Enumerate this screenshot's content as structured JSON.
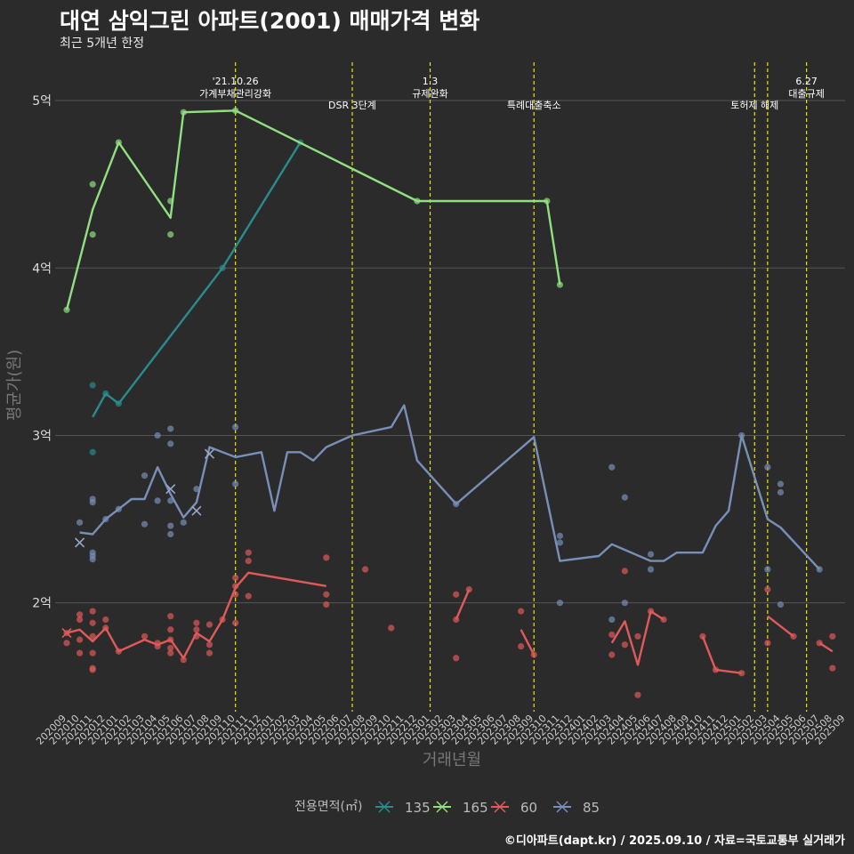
{
  "header": {
    "title": "대연 삼익그린 아파트(2001) 매매가격 변화",
    "subtitle": "최근 5개년 한정"
  },
  "caption": "©디아파트(dapt.kr) / 2025.09.10 / 자료=국토교통부 실거래가",
  "colors": {
    "background": "#2b2b2b",
    "grid": "#555555",
    "event_line": "#e8e800",
    "series": {
      "135": "#2a8c8c",
      "165": "#90e080",
      "60": "#e05a5a",
      "85": "#7890b8"
    }
  },
  "chart_data": {
    "type": "line",
    "title": "대연 삼익그린 아파트(2001) 매매가격 변화",
    "subtitle": "최근 5개년 한정",
    "xlabel": "거래년월",
    "ylabel": "평균가(원)",
    "ylim": [
      1.35,
      5.25
    ],
    "yticks": [
      {
        "value": 2,
        "label": "2억"
      },
      {
        "value": 3,
        "label": "3억"
      },
      {
        "value": 4,
        "label": "4억"
      },
      {
        "value": 5,
        "label": "5억"
      }
    ],
    "grid": true,
    "x_categories": [
      "202009",
      "202010",
      "202011",
      "202012",
      "202101",
      "202102",
      "202103",
      "202104",
      "202105",
      "202106",
      "202107",
      "202108",
      "202109",
      "202110",
      "202111",
      "202112",
      "202201",
      "202202",
      "202203",
      "202204",
      "202205",
      "202206",
      "202207",
      "202208",
      "202209",
      "202210",
      "202211",
      "202212",
      "202301",
      "202302",
      "202303",
      "202304",
      "202305",
      "202306",
      "202307",
      "202308",
      "202309",
      "202310",
      "202311",
      "202312",
      "202401",
      "202402",
      "202403",
      "202404",
      "202405",
      "202406",
      "202407",
      "202408",
      "202409",
      "202410",
      "202411",
      "202412",
      "202501",
      "202502",
      "202503",
      "202504",
      "202505",
      "202506",
      "202507",
      "202508",
      "202509"
    ],
    "events": [
      {
        "x": "202110",
        "label": [
          "'21.10.26",
          "가계부채관리강화"
        ]
      },
      {
        "x": "202207",
        "label": [
          "DSR 3단계"
        ]
      },
      {
        "x": "202301",
        "label": [
          "1.3",
          "규제완화"
        ]
      },
      {
        "x": "202309",
        "label": [
          "특례대출축소"
        ]
      },
      {
        "x": "202502",
        "label": [
          "토허제 해제"
        ]
      },
      {
        "x": "202503",
        "label": []
      },
      {
        "x": "202506",
        "label": [
          "6.27",
          "대출규제"
        ]
      }
    ],
    "legend": {
      "title": "전용면적(㎡)",
      "position": "bottom",
      "entries": [
        "135",
        "165",
        "60",
        "85"
      ]
    },
    "series": [
      {
        "name": "135",
        "line": [
          [
            "202011",
            3.11
          ],
          [
            "202012",
            3.25
          ],
          [
            "202101",
            3.19
          ],
          [
            "202109",
            4.0
          ],
          [
            "202203",
            4.75
          ]
        ],
        "points": [
          [
            "202011",
            3.3
          ],
          [
            "202011",
            2.9
          ],
          [
            "202012",
            3.25
          ],
          [
            "202101",
            3.19
          ],
          [
            "202109",
            4.0
          ],
          [
            "202203",
            4.75
          ]
        ]
      },
      {
        "name": "165",
        "line": [
          [
            "202009",
            3.75
          ],
          [
            "202011",
            4.35
          ],
          [
            "202101",
            4.75
          ],
          [
            "202105",
            4.3
          ],
          [
            "202106",
            4.93
          ],
          [
            "202110",
            4.94
          ],
          [
            "202212",
            4.4
          ],
          [
            "202310",
            4.4
          ],
          [
            "202311",
            3.9
          ]
        ],
        "points": [
          [
            "202009",
            3.75
          ],
          [
            "202011",
            4.5
          ],
          [
            "202011",
            4.2
          ],
          [
            "202101",
            4.75
          ],
          [
            "202105",
            4.4
          ],
          [
            "202105",
            4.2
          ],
          [
            "202106",
            4.93
          ],
          [
            "202110",
            4.94
          ],
          [
            "202212",
            4.4
          ],
          [
            "202310",
            4.4
          ],
          [
            "202311",
            3.9
          ]
        ]
      },
      {
        "name": "60",
        "line": [
          [
            "202009",
            1.82
          ],
          [
            "202010",
            1.84
          ],
          [
            "202011",
            1.77
          ],
          [
            "202012",
            1.85
          ],
          [
            "202101",
            1.71
          ],
          [
            "202103",
            1.78
          ],
          [
            "202104",
            1.75
          ],
          [
            "202105",
            1.78
          ],
          [
            "202106",
            1.67
          ],
          [
            "202107",
            1.82
          ],
          [
            "202108",
            1.77
          ],
          [
            "202109",
            1.9
          ],
          [
            "202110",
            2.09
          ],
          [
            "202111",
            2.18
          ],
          [
            "202205",
            2.1
          ]
        ],
        "line_segments": [
          [
            [
              "202303",
              1.9
            ],
            [
              "202304",
              2.08
            ]
          ],
          [
            [
              "202308",
              1.84
            ],
            [
              "202309",
              1.69
            ]
          ],
          [
            [
              "202403",
              1.76
            ],
            [
              "202404",
              1.89
            ],
            [
              "202405",
              1.63
            ],
            [
              "202406",
              1.95
            ],
            [
              "202407",
              1.9
            ]
          ],
          [
            [
              "202410",
              1.8
            ],
            [
              "202411",
              1.6
            ],
            [
              "202501",
              1.58
            ]
          ],
          [
            [
              "202503",
              1.92
            ],
            [
              "202505",
              1.8
            ]
          ],
          [
            [
              "202507",
              1.76
            ],
            [
              "202508",
              1.71
            ]
          ]
        ],
        "points": [
          [
            "202009",
            1.82
          ],
          [
            "202009",
            1.76
          ],
          [
            "202010",
            1.93
          ],
          [
            "202010",
            1.9
          ],
          [
            "202010",
            1.78
          ],
          [
            "202010",
            1.7
          ],
          [
            "202011",
            1.95
          ],
          [
            "202011",
            1.88
          ],
          [
            "202011",
            1.8
          ],
          [
            "202011",
            1.7
          ],
          [
            "202011",
            1.61
          ],
          [
            "202011",
            1.6
          ],
          [
            "202012",
            1.9
          ],
          [
            "202012",
            1.85
          ],
          [
            "202101",
            1.71
          ],
          [
            "202103",
            1.8
          ],
          [
            "202104",
            1.74
          ],
          [
            "202104",
            1.76
          ],
          [
            "202105",
            1.92
          ],
          [
            "202105",
            1.84
          ],
          [
            "202105",
            1.78
          ],
          [
            "202105",
            1.73
          ],
          [
            "202105",
            1.7
          ],
          [
            "202106",
            1.66
          ],
          [
            "202107",
            1.88
          ],
          [
            "202107",
            1.84
          ],
          [
            "202107",
            1.8
          ],
          [
            "202108",
            1.87
          ],
          [
            "202108",
            1.75
          ],
          [
            "202108",
            1.7
          ],
          [
            "202109",
            1.9
          ],
          [
            "202110",
            2.15
          ],
          [
            "202110",
            2.1
          ],
          [
            "202110",
            2.05
          ],
          [
            "202110",
            1.88
          ],
          [
            "202111",
            2.3
          ],
          [
            "202111",
            2.25
          ],
          [
            "202111",
            2.04
          ],
          [
            "202205",
            2.27
          ],
          [
            "202205",
            2.05
          ],
          [
            "202205",
            1.99
          ],
          [
            "202208",
            2.2
          ],
          [
            "202210",
            1.85
          ],
          [
            "202303",
            2.05
          ],
          [
            "202303",
            1.9
          ],
          [
            "202303",
            1.67
          ],
          [
            "202304",
            2.08
          ],
          [
            "202308",
            1.95
          ],
          [
            "202308",
            1.74
          ],
          [
            "202309",
            1.69
          ],
          [
            "202403",
            1.81
          ],
          [
            "202403",
            1.69
          ],
          [
            "202404",
            2.19
          ],
          [
            "202404",
            1.75
          ],
          [
            "202405",
            1.8
          ],
          [
            "202405",
            1.45
          ],
          [
            "202406",
            1.95
          ],
          [
            "202407",
            1.9
          ],
          [
            "202410",
            1.8
          ],
          [
            "202411",
            1.6
          ],
          [
            "202501",
            1.58
          ],
          [
            "202503",
            2.08
          ],
          [
            "202503",
            1.76
          ],
          [
            "202505",
            1.8
          ],
          [
            "202507",
            1.76
          ],
          [
            "202508",
            1.8
          ],
          [
            "202508",
            1.61
          ]
        ]
      },
      {
        "name": "85",
        "line": [
          [
            "202010",
            2.42
          ],
          [
            "202011",
            2.41
          ],
          [
            "202012",
            2.5
          ],
          [
            "202101",
            2.56
          ],
          [
            "202102",
            2.62
          ],
          [
            "202103",
            2.62
          ],
          [
            "202104",
            2.81
          ],
          [
            "202105",
            2.65
          ],
          [
            "202106",
            2.51
          ],
          [
            "202107",
            2.6
          ],
          [
            "202108",
            2.93
          ],
          [
            "202110",
            2.87
          ],
          [
            "202112",
            2.9
          ],
          [
            "202201",
            2.55
          ],
          [
            "202202",
            2.9
          ],
          [
            "202203",
            2.9
          ],
          [
            "202204",
            2.85
          ],
          [
            "202205",
            2.93
          ],
          [
            "202207",
            3.0
          ],
          [
            "202210",
            3.05
          ],
          [
            "202211",
            3.18
          ],
          [
            "202212",
            2.85
          ],
          [
            "202303",
            2.59
          ],
          [
            "202309",
            2.99
          ],
          [
            "202311",
            2.25
          ],
          [
            "202402",
            2.28
          ],
          [
            "202403",
            2.35
          ],
          [
            "202406",
            2.25
          ],
          [
            "202407",
            2.25
          ],
          [
            "202408",
            2.3
          ],
          [
            "202410",
            2.3
          ],
          [
            "202411",
            2.46
          ],
          [
            "202412",
            2.55
          ],
          [
            "202501",
            3.0
          ],
          [
            "202503",
            2.5
          ],
          [
            "202504",
            2.45
          ],
          [
            "202507",
            2.2
          ]
        ],
        "points": [
          [
            "202010",
            2.48
          ],
          [
            "202011",
            2.62
          ],
          [
            "202011",
            2.6
          ],
          [
            "202011",
            2.3
          ],
          [
            "202011",
            2.28
          ],
          [
            "202011",
            2.26
          ],
          [
            "202012",
            2.5
          ],
          [
            "202101",
            2.56
          ],
          [
            "202103",
            2.76
          ],
          [
            "202103",
            2.47
          ],
          [
            "202104",
            3.0
          ],
          [
            "202104",
            2.61
          ],
          [
            "202105",
            3.04
          ],
          [
            "202105",
            2.95
          ],
          [
            "202105",
            2.61
          ],
          [
            "202105",
            2.46
          ],
          [
            "202105",
            2.41
          ],
          [
            "202106",
            2.48
          ],
          [
            "202107",
            2.68
          ],
          [
            "202110",
            3.05
          ],
          [
            "202110",
            2.71
          ],
          [
            "202303",
            2.59
          ],
          [
            "202311",
            2.4
          ],
          [
            "202311",
            2.36
          ],
          [
            "202311",
            2.0
          ],
          [
            "202403",
            2.81
          ],
          [
            "202403",
            1.9
          ],
          [
            "202404",
            2.63
          ],
          [
            "202404",
            2.0
          ],
          [
            "202406",
            2.29
          ],
          [
            "202406",
            2.2
          ],
          [
            "202501",
            3.0
          ],
          [
            "202503",
            2.81
          ],
          [
            "202503",
            2.2
          ],
          [
            "202504",
            2.71
          ],
          [
            "202504",
            2.66
          ],
          [
            "202504",
            1.99
          ],
          [
            "202507",
            2.2
          ]
        ],
        "cross_marks": [
          [
            "202010",
            2.36
          ],
          [
            "202105",
            2.68
          ],
          [
            "202107",
            2.55
          ],
          [
            "202108",
            2.89
          ]
        ]
      }
    ],
    "cross_marks_60": [
      [
        "202009",
        1.82
      ]
    ]
  }
}
